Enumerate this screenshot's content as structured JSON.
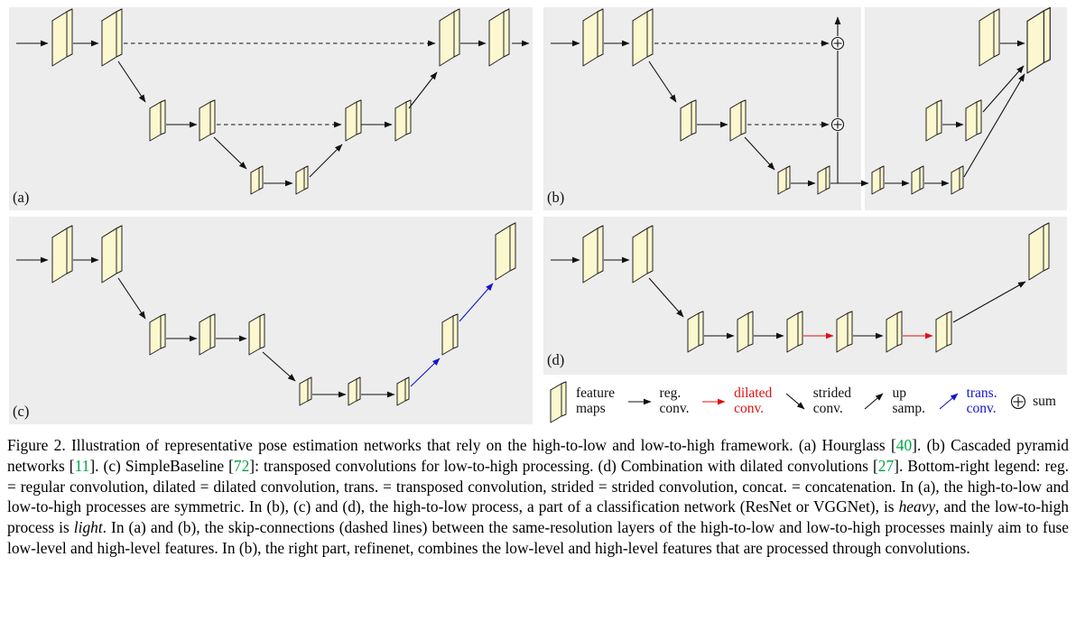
{
  "figure": {
    "panels": [
      {
        "label": "(a)"
      },
      {
        "label": "(b)"
      },
      {
        "label": "(c)"
      },
      {
        "label": "(d)"
      }
    ],
    "legend": {
      "items": [
        {
          "symbol": "feature-map",
          "line1": "feature",
          "line2": "maps"
        },
        {
          "symbol": "regular-conv-arrow",
          "line1": "reg.",
          "line2": "conv."
        },
        {
          "symbol": "dilated-conv-arrow",
          "line1": "dilated",
          "line2": "conv."
        },
        {
          "symbol": "strided-conv-arrow",
          "line1": "strided",
          "line2": "conv."
        },
        {
          "symbol": "up-sampling-arrow",
          "line1": "up",
          "line2": "samp."
        },
        {
          "symbol": "transposed-conv-arrow",
          "line1": "trans.",
          "line2": "conv."
        },
        {
          "symbol": "sum",
          "line1": "sum",
          "line2": ""
        }
      ]
    }
  },
  "colors": {
    "panel_background": "#ededed",
    "feature_map_fill": "#fbf7cf",
    "dilated_conv_red": "#e01010",
    "transposed_conv_blue": "#1414cc",
    "citation_green": "#00a646"
  },
  "caption": {
    "segments": [
      {
        "text": "Figure 2. Illustration of representative pose estimation networks that rely on the high-to-low and low-to-high framework. (a) Hourglass ["
      },
      {
        "text": "40",
        "style": "ref"
      },
      {
        "text": "]. (b) Cascaded pyramid networks ["
      },
      {
        "text": "11",
        "style": "ref"
      },
      {
        "text": "]. (c) SimpleBaseline ["
      },
      {
        "text": "72",
        "style": "ref"
      },
      {
        "text": "]: transposed convolutions for low-to-high processing. (d) Combination with dilated convolutions ["
      },
      {
        "text": "27",
        "style": "ref"
      },
      {
        "text": "]. Bottom-right legend: reg. = regular convolution, dilated = dilated convolution, trans. = transposed convolution, strided = strided convolution, concat. = concatenation. In (a), the high-to-low and low-to-high processes are symmetric. In (b), (c) and (d), the high-to-low process, a part of a classification network (ResNet or VGGNet), is "
      },
      {
        "text": "heavy",
        "style": "em"
      },
      {
        "text": ", and the low-to-high process is "
      },
      {
        "text": "light",
        "style": "em"
      },
      {
        "text": ". In (a) and (b), the skip-connections (dashed lines) between the same-resolution layers of the high-to-low and low-to-high processes mainly aim to fuse low-level and high-level features. In (b), the right part, refinenet, combines the low-level and high-level features that are processed through convolutions."
      }
    ]
  }
}
